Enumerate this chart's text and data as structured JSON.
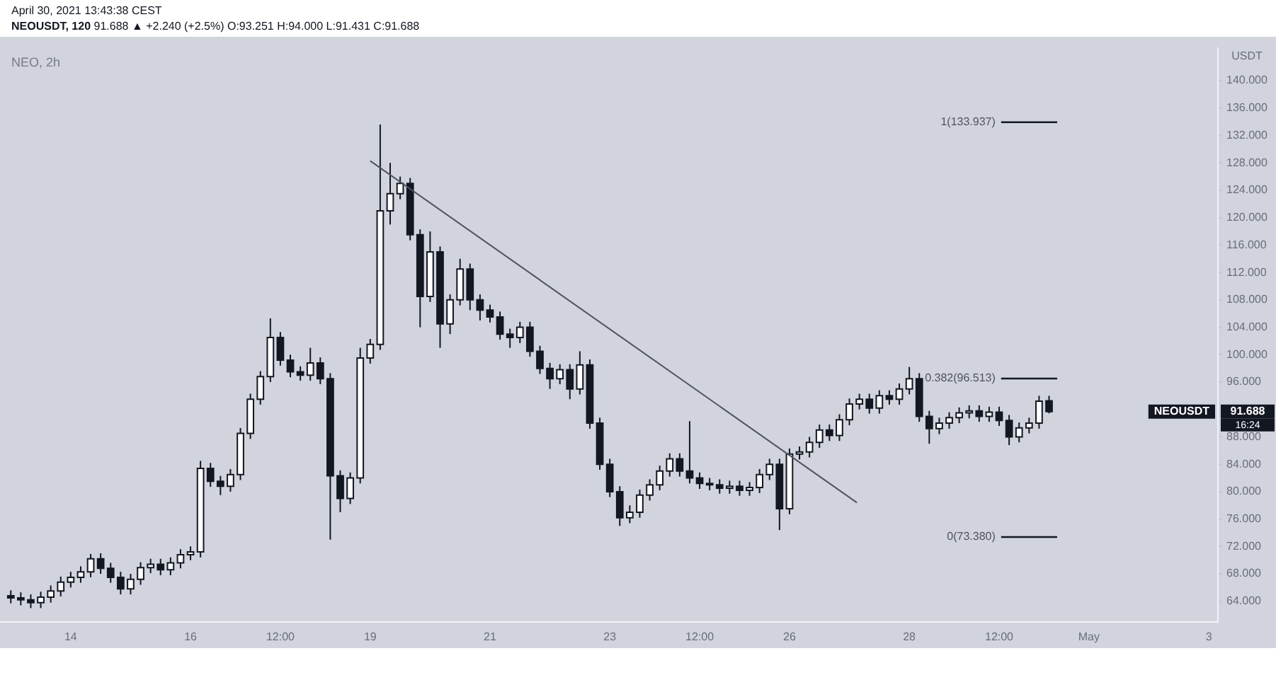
{
  "chart_data": {
    "type": "candlestick",
    "title": "NEOUSDT, 120",
    "subtitle": "April 30, 2021 13:43:38 CEST",
    "ylabel": "USDT",
    "x": [
      "2021-04-13T00:00",
      "2021-04-13T04:00",
      "2021-04-13T08:00",
      "2021-04-13T12:00",
      "2021-04-13T16:00",
      "2021-04-13T20:00",
      "2021-04-14T00:00",
      "2021-04-14T04:00",
      "2021-04-14T08:00",
      "2021-04-14T12:00",
      "2021-04-14T16:00",
      "2021-04-14T20:00",
      "2021-04-15T00:00",
      "2021-04-15T04:00",
      "2021-04-15T08:00",
      "2021-04-15T12:00",
      "2021-04-15T16:00",
      "2021-04-15T20:00",
      "2021-04-16T00:00",
      "2021-04-16T04:00",
      "2021-04-16T08:00",
      "2021-04-16T12:00",
      "2021-04-16T16:00",
      "2021-04-16T20:00",
      "2021-04-17T00:00",
      "2021-04-17T04:00",
      "2021-04-17T08:00",
      "2021-04-17T12:00",
      "2021-04-17T16:00",
      "2021-04-17T20:00",
      "2021-04-18T00:00",
      "2021-04-18T04:00",
      "2021-04-18T08:00",
      "2021-04-18T12:00",
      "2021-04-18T16:00",
      "2021-04-18T20:00",
      "2021-04-19T00:00",
      "2021-04-19T04:00",
      "2021-04-19T08:00",
      "2021-04-19T12:00",
      "2021-04-19T16:00",
      "2021-04-19T20:00",
      "2021-04-20T00:00",
      "2021-04-20T04:00",
      "2021-04-20T08:00",
      "2021-04-20T12:00",
      "2021-04-20T16:00",
      "2021-04-20T20:00",
      "2021-04-21T00:00",
      "2021-04-21T04:00",
      "2021-04-21T08:00",
      "2021-04-21T12:00",
      "2021-04-21T16:00",
      "2021-04-21T20:00",
      "2021-04-22T00:00",
      "2021-04-22T04:00",
      "2021-04-22T08:00",
      "2021-04-22T12:00",
      "2021-04-22T16:00",
      "2021-04-22T20:00",
      "2021-04-23T00:00",
      "2021-04-23T04:00",
      "2021-04-23T08:00",
      "2021-04-23T12:00",
      "2021-04-23T16:00",
      "2021-04-23T20:00",
      "2021-04-24T00:00",
      "2021-04-24T04:00",
      "2021-04-24T08:00",
      "2021-04-24T12:00",
      "2021-04-24T16:00",
      "2021-04-24T20:00",
      "2021-04-25T00:00",
      "2021-04-25T04:00",
      "2021-04-25T08:00",
      "2021-04-25T12:00",
      "2021-04-25T16:00",
      "2021-04-25T20:00",
      "2021-04-26T00:00",
      "2021-04-26T04:00",
      "2021-04-26T08:00",
      "2021-04-26T12:00",
      "2021-04-26T16:00",
      "2021-04-26T20:00",
      "2021-04-27T00:00",
      "2021-04-27T04:00",
      "2021-04-27T08:00",
      "2021-04-27T12:00",
      "2021-04-27T16:00",
      "2021-04-27T20:00",
      "2021-04-28T00:00",
      "2021-04-28T04:00",
      "2021-04-28T08:00",
      "2021-04-28T12:00",
      "2021-04-28T16:00",
      "2021-04-28T20:00",
      "2021-04-29T00:00",
      "2021-04-29T04:00",
      "2021-04-29T08:00",
      "2021-04-29T12:00",
      "2021-04-29T16:00",
      "2021-04-29T20:00",
      "2021-04-30T00:00",
      "2021-04-30T04:00",
      "2021-04-30T08:00"
    ],
    "ohlc": [
      [
        64.8,
        65.6,
        63.7,
        64.5
      ],
      [
        64.5,
        65.3,
        63.4,
        64.2
      ],
      [
        64.2,
        65.0,
        63.0,
        63.8
      ],
      [
        63.8,
        65.4,
        63.0,
        64.6
      ],
      [
        64.6,
        66.3,
        63.8,
        65.5
      ],
      [
        65.5,
        67.6,
        64.7,
        66.8
      ],
      [
        66.8,
        68.3,
        66.0,
        67.5
      ],
      [
        67.5,
        69.1,
        66.7,
        68.3
      ],
      [
        68.3,
        70.9,
        67.5,
        70.2
      ],
      [
        70.2,
        71.0,
        68.0,
        68.8
      ],
      [
        68.8,
        69.6,
        66.7,
        67.5
      ],
      [
        67.5,
        68.3,
        65.0,
        65.8
      ],
      [
        65.8,
        68.0,
        65.0,
        67.2
      ],
      [
        67.2,
        69.7,
        66.4,
        68.9
      ],
      [
        68.9,
        70.2,
        68.1,
        69.4
      ],
      [
        69.4,
        70.2,
        67.8,
        68.6
      ],
      [
        68.6,
        70.4,
        67.8,
        69.6
      ],
      [
        69.6,
        71.6,
        68.8,
        70.8
      ],
      [
        70.8,
        72.0,
        70.0,
        71.2
      ],
      [
        71.2,
        84.5,
        70.4,
        83.4
      ],
      [
        83.4,
        84.2,
        80.7,
        81.5
      ],
      [
        81.5,
        82.3,
        79.5,
        80.8
      ],
      [
        80.8,
        83.3,
        80.0,
        82.5
      ],
      [
        82.5,
        89.3,
        81.7,
        88.5
      ],
      [
        88.5,
        94.3,
        87.7,
        93.5
      ],
      [
        93.5,
        97.6,
        92.7,
        96.8
      ],
      [
        96.8,
        105.3,
        96.0,
        102.5
      ],
      [
        102.5,
        103.3,
        98.4,
        99.2
      ],
      [
        99.2,
        100.0,
        96.7,
        97.5
      ],
      [
        97.5,
        98.3,
        96.2,
        97.0
      ],
      [
        97.0,
        101.0,
        96.2,
        98.8
      ],
      [
        98.8,
        99.6,
        95.7,
        96.5
      ],
      [
        96.5,
        97.3,
        73.0,
        82.3
      ],
      [
        82.3,
        83.1,
        77.0,
        79.0
      ],
      [
        79.0,
        82.8,
        78.2,
        82.0
      ],
      [
        82.0,
        101.0,
        81.2,
        99.5
      ],
      [
        99.5,
        102.3,
        98.7,
        101.5
      ],
      [
        101.5,
        133.6,
        100.7,
        121.0
      ],
      [
        121.0,
        128.0,
        119.0,
        123.5
      ],
      [
        123.5,
        126.0,
        122.7,
        125.0
      ],
      [
        125.0,
        125.8,
        116.7,
        117.5
      ],
      [
        117.5,
        118.3,
        104.0,
        108.5
      ],
      [
        108.5,
        118.0,
        107.7,
        115.0
      ],
      [
        115.0,
        115.8,
        101.0,
        104.5
      ],
      [
        104.5,
        108.8,
        103.0,
        108.0
      ],
      [
        108.0,
        114.0,
        107.2,
        112.5
      ],
      [
        112.5,
        113.3,
        106.5,
        108.0
      ],
      [
        108.0,
        108.8,
        105.0,
        106.5
      ],
      [
        106.5,
        107.3,
        104.7,
        105.5
      ],
      [
        105.5,
        106.3,
        102.2,
        103.0
      ],
      [
        103.0,
        103.8,
        101.0,
        102.5
      ],
      [
        102.5,
        104.8,
        101.7,
        104.0
      ],
      [
        104.0,
        104.8,
        99.7,
        100.5
      ],
      [
        100.5,
        101.3,
        97.2,
        98.0
      ],
      [
        98.0,
        98.8,
        95.0,
        96.5
      ],
      [
        96.5,
        98.6,
        95.7,
        97.8
      ],
      [
        97.8,
        98.6,
        93.5,
        95.0
      ],
      [
        95.0,
        100.5,
        94.2,
        98.5
      ],
      [
        98.5,
        99.3,
        89.2,
        90.0
      ],
      [
        90.0,
        90.8,
        83.2,
        84.0
      ],
      [
        84.0,
        84.8,
        79.2,
        80.0
      ],
      [
        80.0,
        80.8,
        75.0,
        76.2
      ],
      [
        76.2,
        78.0,
        75.4,
        77.0
      ],
      [
        77.0,
        80.3,
        76.2,
        79.5
      ],
      [
        79.5,
        81.8,
        78.7,
        81.0
      ],
      [
        81.0,
        83.8,
        80.2,
        83.0
      ],
      [
        83.0,
        85.6,
        82.2,
        84.8
      ],
      [
        84.8,
        85.6,
        82.2,
        83.0
      ],
      [
        83.0,
        90.3,
        81.2,
        82.0
      ],
      [
        82.0,
        82.8,
        80.4,
        81.2
      ],
      [
        81.2,
        82.0,
        80.2,
        81.0
      ],
      [
        81.0,
        81.8,
        79.7,
        80.5
      ],
      [
        80.5,
        81.6,
        79.7,
        80.8
      ],
      [
        80.8,
        81.6,
        79.4,
        80.2
      ],
      [
        80.2,
        81.4,
        79.4,
        80.6
      ],
      [
        80.6,
        83.3,
        79.8,
        82.5
      ],
      [
        82.5,
        84.8,
        81.7,
        84.0
      ],
      [
        84.0,
        84.8,
        74.4,
        77.5
      ],
      [
        77.5,
        86.3,
        76.7,
        85.5
      ],
      [
        85.5,
        86.6,
        84.7,
        85.8
      ],
      [
        85.8,
        88.0,
        85.0,
        87.2
      ],
      [
        87.2,
        89.8,
        86.4,
        89.0
      ],
      [
        89.0,
        89.8,
        87.4,
        88.2
      ],
      [
        88.2,
        91.3,
        87.4,
        90.5
      ],
      [
        90.5,
        93.6,
        89.7,
        92.8
      ],
      [
        92.8,
        94.3,
        92.0,
        93.5
      ],
      [
        93.5,
        94.3,
        91.4,
        92.2
      ],
      [
        92.2,
        94.8,
        91.4,
        94.0
      ],
      [
        94.0,
        94.8,
        92.7,
        93.5
      ],
      [
        93.5,
        95.8,
        92.7,
        95.0
      ],
      [
        95.0,
        98.2,
        94.2,
        96.5
      ],
      [
        96.5,
        97.3,
        90.2,
        91.0
      ],
      [
        91.0,
        91.8,
        87.0,
        89.2
      ],
      [
        89.2,
        90.8,
        88.4,
        90.0
      ],
      [
        90.0,
        91.6,
        89.2,
        90.8
      ],
      [
        90.8,
        92.3,
        90.0,
        91.5
      ],
      [
        91.5,
        92.6,
        90.7,
        91.8
      ],
      [
        91.8,
        92.6,
        90.2,
        91.0
      ],
      [
        91.0,
        92.4,
        90.2,
        91.6
      ],
      [
        91.6,
        92.4,
        89.6,
        90.4
      ],
      [
        90.4,
        91.2,
        86.8,
        88.0
      ],
      [
        88.0,
        90.1,
        87.2,
        89.3
      ],
      [
        89.3,
        90.8,
        88.5,
        90.0
      ],
      [
        90.0,
        94.0,
        89.2,
        93.2
      ],
      [
        93.251,
        94.0,
        91.431,
        91.688
      ]
    ],
    "series": [
      {
        "type": "line",
        "color": "#50535e",
        "x": [
          "2021-04-19T00:00",
          "2021-04-27T03:00"
        ],
        "values": [
          128.3,
          78.4
        ]
      }
    ],
    "xlim": [
      "2021-04-12T19:40",
      "2021-05-03T03:40"
    ],
    "xticks": [
      {
        "value": "2021-04-14",
        "label": "14"
      },
      {
        "value": "2021-04-16",
        "label": "16"
      },
      {
        "value": "2021-04-17T12:00",
        "label": "12:00"
      },
      {
        "value": "2021-04-19",
        "label": "19"
      },
      {
        "value": "2021-04-21",
        "label": "21"
      },
      {
        "value": "2021-04-23",
        "label": "23"
      },
      {
        "value": "2021-04-24T12:00",
        "label": "12:00"
      },
      {
        "value": "2021-04-26",
        "label": "26"
      },
      {
        "value": "2021-04-28",
        "label": "28"
      },
      {
        "value": "2021-04-29T12:00",
        "label": "12:00"
      },
      {
        "value": "2021-05-01",
        "label": "May"
      },
      {
        "value": "2021-05-03",
        "label": "3"
      }
    ],
    "ylim": [
      61,
      144.8
    ],
    "yticks": [
      {
        "value": 64,
        "label": "64.000"
      },
      {
        "value": 68,
        "label": "68.000"
      },
      {
        "value": 72,
        "label": "72.000"
      },
      {
        "value": 76,
        "label": "76.000"
      },
      {
        "value": 80,
        "label": "80.000"
      },
      {
        "value": 84,
        "label": "84.000"
      },
      {
        "value": 88,
        "label": "88.000"
      },
      {
        "value": 96,
        "label": "96.000"
      },
      {
        "value": 100,
        "label": "100.000"
      },
      {
        "value": 104,
        "label": "104.000"
      },
      {
        "value": 108,
        "label": "108.000"
      },
      {
        "value": 112,
        "label": "112.000"
      },
      {
        "value": 116,
        "label": "116.000"
      },
      {
        "value": 120,
        "label": "120.000"
      },
      {
        "value": 124,
        "label": "124.000"
      },
      {
        "value": 128,
        "label": "128.000"
      },
      {
        "value": 132,
        "label": "132.000"
      },
      {
        "value": 136,
        "label": "136.000"
      },
      {
        "value": 140,
        "label": "140.000"
      }
    ],
    "ref_lines": [
      {
        "axis": "y",
        "value": 133.937,
        "label": "1(133.937)",
        "color": "#131722"
      },
      {
        "axis": "y",
        "value": 96.513,
        "label": "0.382(96.513)",
        "color": "#131722"
      },
      {
        "axis": "y",
        "value": 73.38,
        "label": "0(73.380)",
        "color": "#131722"
      }
    ],
    "annotations": [
      "91.688 ▲ +2.240 (+2.5%) O:93.251 H:94.000 L:91.431 C:91.688",
      "NEO, 2h",
      "16:24",
      "NEOUSDT",
      "91.688"
    ],
    "grid": false,
    "legend": false
  }
}
